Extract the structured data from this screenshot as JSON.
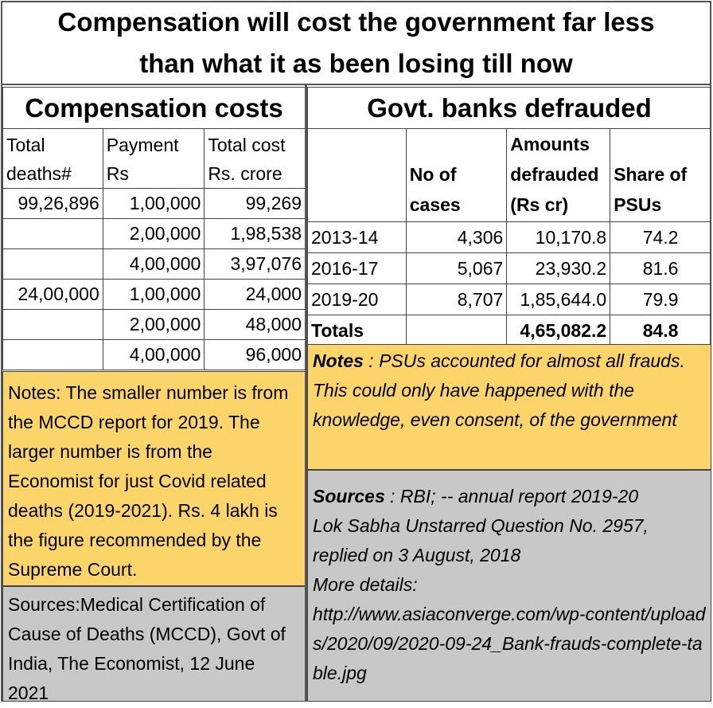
{
  "title": {
    "line1": "Compensation will cost the government far less",
    "line2": "than what it as been losing till now"
  },
  "left": {
    "heading": "Compensation costs",
    "headers": {
      "col1_l1": "Total",
      "col1_l2": "deaths#",
      "col2_l1": "Payment",
      "col2_l2": "Rs",
      "col3_l1": "Total cost",
      "col3_l2": "Rs.  crore"
    },
    "rows": [
      {
        "deaths": "99,26,896",
        "payment": "1,00,000",
        "cost": "99,269"
      },
      {
        "deaths": "",
        "payment": "2,00,000",
        "cost": "1,98,538"
      },
      {
        "deaths": "",
        "payment": "4,00,000",
        "cost": "3,97,076"
      },
      {
        "deaths": "24,00,000",
        "payment": "1,00,000",
        "cost": "24,000"
      },
      {
        "deaths": "",
        "payment": "2,00,000",
        "cost": "48,000"
      },
      {
        "deaths": "",
        "payment": "4,00,000",
        "cost": "96,000"
      }
    ],
    "notes": "Notes: The smaller number is from the MCCD report for 2019. The larger number is from the Economist for just Covid related deaths (2019-2021). Rs. 4 lakh is the figure recommended by the Supreme Court.",
    "sources": "Sources:Medical Certification of Cause of Deaths (MCCD), Govt of India, The Economist, 12 June 2021"
  },
  "right": {
    "heading": "Govt. banks defrauded",
    "headers": {
      "cases_l1": "No of",
      "cases_l2": "cases",
      "amt_l1": "Amounts",
      "amt_l2": "defrauded",
      "amt_l3": "(Rs cr)",
      "share_l1": "Share of",
      "share_l2": "PSUs"
    },
    "rows": [
      {
        "year": "2013-14",
        "cases": "4,306",
        "amount": "10,170.8",
        "share": "74.2"
      },
      {
        "year": "2016-17",
        "cases": "5,067",
        "amount": "23,930.2",
        "share": "81.6"
      },
      {
        "year": "2019-20",
        "cases": "8,707",
        "amount": "1,85,644.0",
        "share": "79.9"
      }
    ],
    "totals": {
      "label": "Totals",
      "cases": "",
      "amount": "4,65,082.2",
      "share": "84.8"
    },
    "notes_label": "Notes",
    "notes_text": " :  PSUs accounted for almost all frauds. This could only have happened with the knowledge, even consent, of the government",
    "sources_label": "Sources",
    "sources_l1": " : RBI; -- annual report 2019-20",
    "sources_l2": "Lok Sabha Unstarred Question No. 2957,",
    "sources_l3": "replied on 3 August, 2018",
    "sources_l4": "More details:",
    "sources_l5": "http://www.asiaconverge.com/wp-content/uploads/2020/09/2020-09-24_Bank-frauds-complete-table.jpg"
  }
}
